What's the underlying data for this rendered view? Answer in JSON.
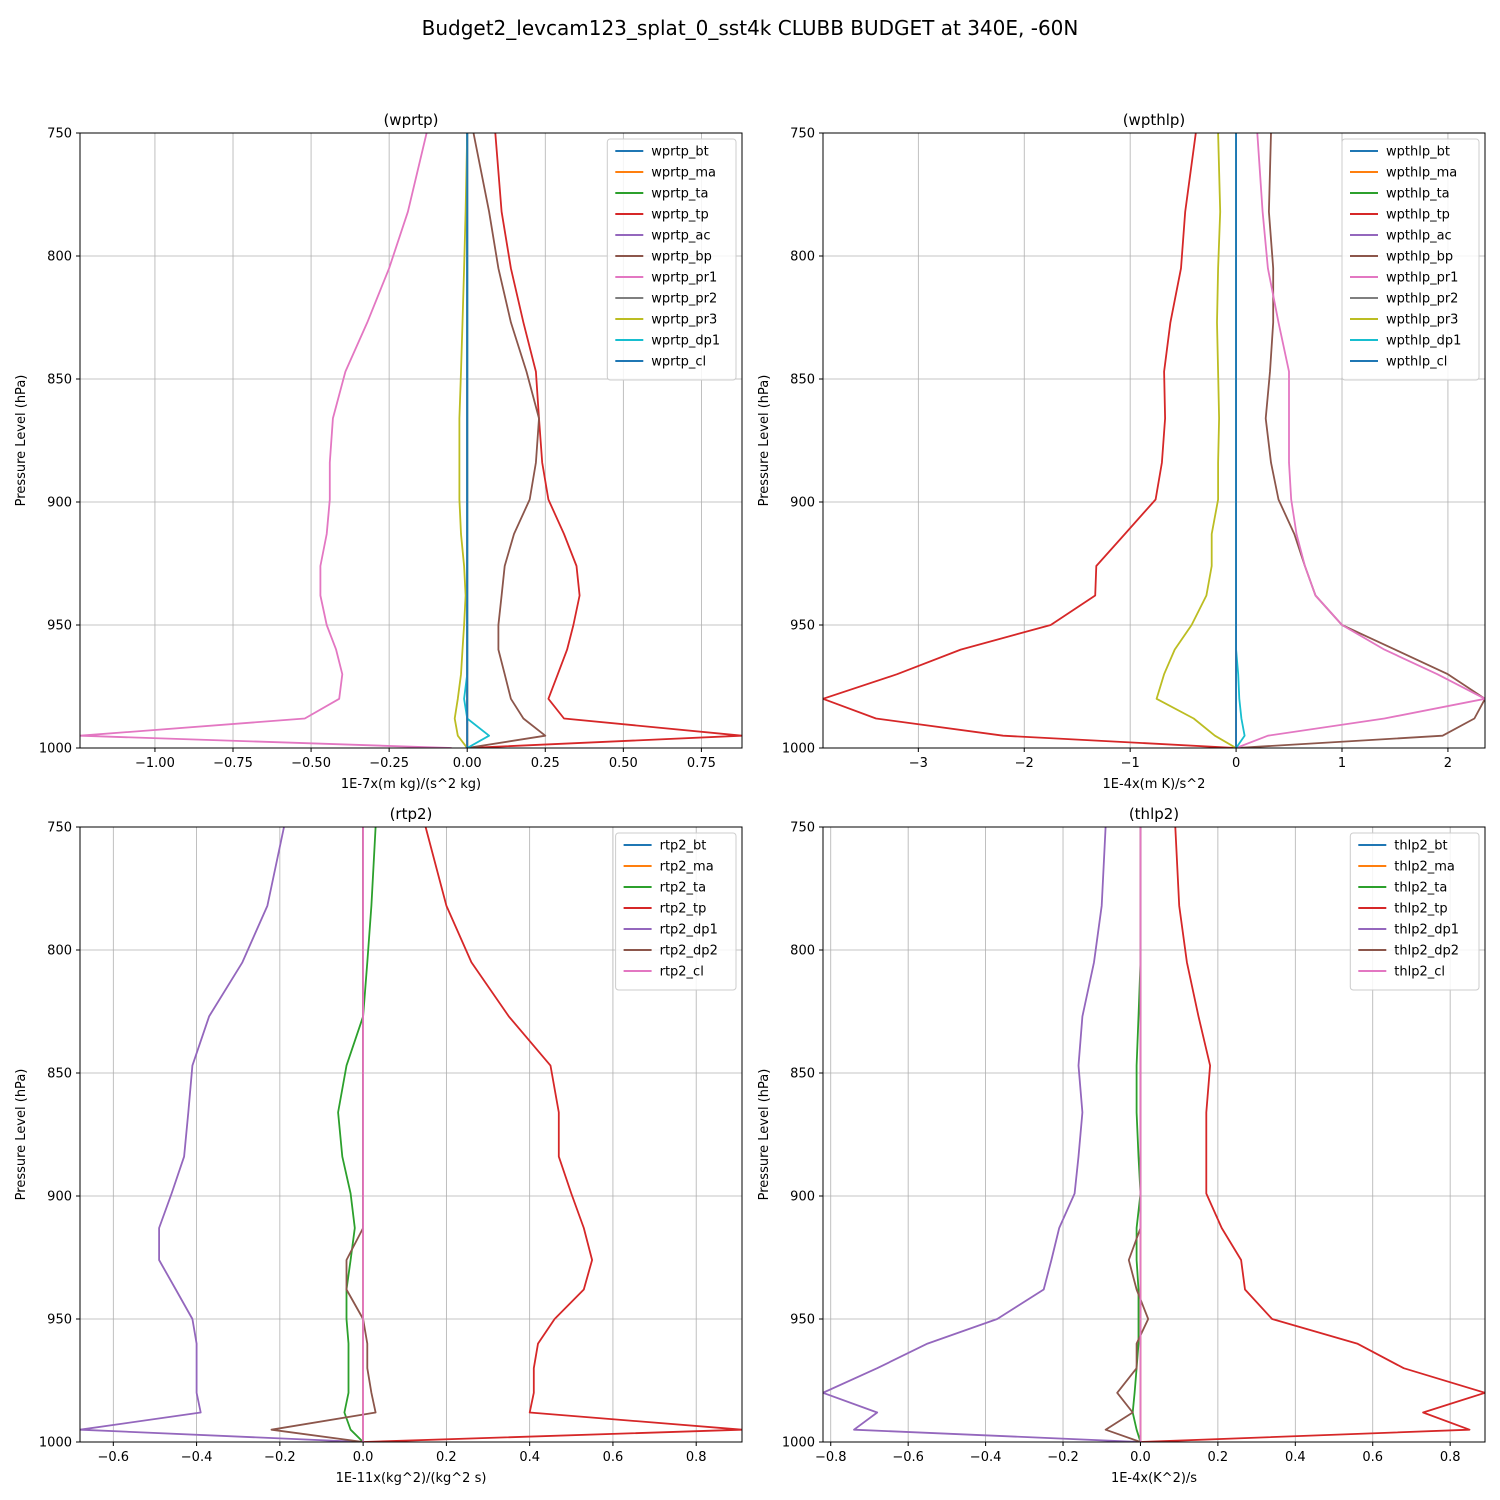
{
  "figure_title": "Budget2_levcam123_splat_0_sst4k CLUBB BUDGET at 340E, -60N",
  "colors": {
    "C0": "#1f77b4",
    "C1": "#ff7f0e",
    "C2": "#2ca02c",
    "C3": "#d62728",
    "C4": "#9467bd",
    "C5": "#8c564b",
    "C6": "#e377c2",
    "C7": "#7f7f7f",
    "C8": "#bcbd22",
    "C9": "#17becf"
  },
  "chart_data": [
    {
      "type": "line",
      "title": "(wprtp)",
      "xlabel": "1E-7x(m kg)/(s^2 kg)",
      "ylabel": "Pressure Level (hPa)",
      "xlim": [
        -1.24,
        0.88
      ],
      "ylim": [
        1000,
        750
      ],
      "yticks": [
        750,
        800,
        850,
        900,
        950,
        1000
      ],
      "xticks": [
        -1.0,
        -0.75,
        -0.5,
        -0.25,
        0.0,
        0.25,
        0.5,
        0.75
      ],
      "xtick_labels": [
        "−1.00",
        "−0.75",
        "−0.50",
        "−0.25",
        "0.00",
        "0.25",
        "0.50",
        "0.75"
      ],
      "grid": true,
      "legend": "top-right",
      "levels": [
        750,
        782,
        805,
        827,
        847,
        866,
        884,
        899,
        913,
        926,
        938,
        950,
        960,
        970,
        980,
        988,
        995,
        1000
      ],
      "series": [
        {
          "name": "wprtp_bt",
          "color": "C0",
          "values": [
            0,
            0,
            0,
            0,
            0,
            0,
            0,
            0,
            0,
            0,
            0,
            0,
            0,
            0,
            0,
            0,
            0,
            0
          ]
        },
        {
          "name": "wprtp_ma",
          "color": "C1",
          "values": [
            0,
            0,
            0,
            0,
            0,
            0,
            0,
            0,
            0,
            0,
            0,
            0,
            0,
            0,
            0,
            0,
            0,
            0
          ]
        },
        {
          "name": "wprtp_ta",
          "color": "C2",
          "values": [
            0,
            0,
            0,
            0,
            0,
            0,
            0,
            0,
            0,
            0,
            0,
            0,
            0,
            0,
            0,
            0,
            0,
            0
          ]
        },
        {
          "name": "wprtp_tp",
          "color": "C3",
          "values": [
            0.09,
            0.11,
            0.14,
            0.18,
            0.22,
            0.23,
            0.24,
            0.26,
            0.31,
            0.35,
            0.36,
            0.34,
            0.32,
            0.29,
            0.26,
            0.31,
            0.88,
            0.0
          ]
        },
        {
          "name": "wprtp_ac",
          "color": "C4",
          "values": [
            0,
            0,
            0,
            0,
            0,
            0,
            0,
            0,
            0,
            0,
            0,
            0,
            0,
            0,
            0,
            0,
            0,
            0
          ]
        },
        {
          "name": "wprtp_bp",
          "color": "C5",
          "values": [
            0.02,
            0.07,
            0.1,
            0.14,
            0.19,
            0.23,
            0.22,
            0.2,
            0.15,
            0.12,
            0.11,
            0.1,
            0.1,
            0.12,
            0.14,
            0.18,
            0.25,
            0.0
          ]
        },
        {
          "name": "wprtp_pr1",
          "color": "C6",
          "values": [
            -0.13,
            -0.19,
            -0.25,
            -0.32,
            -0.39,
            -0.43,
            -0.44,
            -0.44,
            -0.45,
            -0.47,
            -0.47,
            -0.45,
            -0.42,
            -0.4,
            -0.41,
            -0.52,
            -1.24,
            -0.05
          ]
        },
        {
          "name": "wprtp_pr2",
          "color": "C7",
          "values": [
            0,
            0,
            0,
            0,
            0,
            0,
            0,
            0,
            0,
            0,
            0,
            0,
            0,
            0,
            0,
            0,
            0,
            0
          ]
        },
        {
          "name": "wprtp_pr3",
          "color": "C8",
          "values": [
            0.0,
            -0.005,
            -0.01,
            -0.015,
            -0.02,
            -0.025,
            -0.025,
            -0.025,
            -0.02,
            -0.01,
            -0.005,
            -0.01,
            -0.015,
            -0.02,
            -0.03,
            -0.04,
            -0.03,
            0.0
          ]
        },
        {
          "name": "wprtp_dp1",
          "color": "C9",
          "values": [
            0,
            0,
            0,
            0,
            0,
            0,
            0,
            0,
            0,
            0,
            0,
            0,
            0,
            0,
            -0.01,
            0.0,
            0.07,
            0.0
          ]
        },
        {
          "name": "wprtp_cl",
          "color": "C0",
          "values": [
            0,
            0,
            0,
            0,
            0,
            0,
            0,
            0,
            0,
            0,
            0,
            0,
            0,
            0,
            0,
            0,
            0,
            0
          ]
        }
      ]
    },
    {
      "type": "line",
      "title": "(wpthlp)",
      "xlabel": "1E-4x(m K)/s^2",
      "ylabel": "Pressure Level (hPa)",
      "xlim": [
        -3.9,
        2.35
      ],
      "ylim": [
        1000,
        750
      ],
      "yticks": [
        750,
        800,
        850,
        900,
        950,
        1000
      ],
      "xticks": [
        -3,
        -2,
        -1,
        0,
        1,
        2
      ],
      "xtick_labels": [
        "−3",
        "−2",
        "−1",
        "0",
        "1",
        "2"
      ],
      "grid": true,
      "legend": "top-right",
      "levels": [
        750,
        782,
        805,
        827,
        847,
        866,
        884,
        899,
        913,
        926,
        938,
        950,
        960,
        970,
        980,
        988,
        995,
        1000
      ],
      "series": [
        {
          "name": "wpthlp_bt",
          "color": "C0",
          "values": [
            0,
            0,
            0,
            0,
            0,
            0,
            0,
            0,
            0,
            0,
            0,
            0,
            0,
            0,
            0,
            0,
            0,
            0
          ]
        },
        {
          "name": "wpthlp_ma",
          "color": "C1",
          "values": [
            0,
            0,
            0,
            0,
            0,
            0,
            0,
            0,
            0,
            0,
            0,
            0,
            0,
            0,
            0,
            0,
            0,
            0
          ]
        },
        {
          "name": "wpthlp_ta",
          "color": "C2",
          "values": [
            0,
            0,
            0,
            0,
            0,
            0,
            0,
            0,
            0,
            0,
            0,
            0,
            0,
            0,
            0,
            0,
            0,
            0
          ]
        },
        {
          "name": "wpthlp_tp",
          "color": "C3",
          "values": [
            -0.38,
            -0.48,
            -0.52,
            -0.62,
            -0.68,
            -0.67,
            -0.7,
            -0.76,
            -1.05,
            -1.32,
            -1.33,
            -1.75,
            -2.6,
            -3.2,
            -3.9,
            -3.4,
            -2.2,
            0.0
          ]
        },
        {
          "name": "wpthlp_ac",
          "color": "C4",
          "values": [
            0,
            0,
            0,
            0,
            0,
            0,
            0,
            0,
            0,
            0,
            0,
            0,
            0,
            0,
            0,
            0,
            0,
            0
          ]
        },
        {
          "name": "wpthlp_bp",
          "color": "C5",
          "values": [
            0.33,
            0.31,
            0.35,
            0.35,
            0.32,
            0.28,
            0.33,
            0.4,
            0.55,
            0.65,
            0.75,
            1.0,
            1.5,
            2.0,
            2.35,
            2.25,
            1.95,
            0.0
          ]
        },
        {
          "name": "wpthlp_pr1",
          "color": "C6",
          "values": [
            0.2,
            0.25,
            0.3,
            0.4,
            0.5,
            0.5,
            0.5,
            0.52,
            0.57,
            0.65,
            0.75,
            1.0,
            1.4,
            1.9,
            2.35,
            1.4,
            0.3,
            0.0
          ]
        },
        {
          "name": "wpthlp_pr2",
          "color": "C7",
          "values": [
            0,
            0,
            0,
            0,
            0,
            0,
            0,
            0,
            0,
            0,
            0,
            0,
            0,
            0,
            0,
            0,
            0,
            0
          ]
        },
        {
          "name": "wpthlp_pr3",
          "color": "C8",
          "values": [
            -0.17,
            -0.15,
            -0.17,
            -0.18,
            -0.17,
            -0.16,
            -0.17,
            -0.17,
            -0.23,
            -0.23,
            -0.28,
            -0.42,
            -0.58,
            -0.68,
            -0.75,
            -0.4,
            -0.2,
            0.0
          ]
        },
        {
          "name": "wpthlp_dp1",
          "color": "C9",
          "values": [
            0,
            0,
            0,
            0,
            0,
            0,
            0,
            0,
            0,
            0,
            0,
            0,
            0,
            0.02,
            0.03,
            0.05,
            0.08,
            0.0
          ]
        },
        {
          "name": "wpthlp_cl",
          "color": "C0",
          "values": [
            0,
            0,
            0,
            0,
            0,
            0,
            0,
            0,
            0,
            0,
            0,
            0,
            0,
            0,
            0,
            0,
            0,
            0
          ]
        }
      ]
    },
    {
      "type": "line",
      "title": "(rtp2)",
      "xlabel": "1E-11x(kg^2)/(kg^2 s)",
      "ylabel": "Pressure Level (hPa)",
      "xlim": [
        -0.68,
        0.91
      ],
      "ylim": [
        1000,
        750
      ],
      "yticks": [
        750,
        800,
        850,
        900,
        950,
        1000
      ],
      "xticks": [
        -0.6,
        -0.4,
        -0.2,
        0.0,
        0.2,
        0.4,
        0.6,
        0.8
      ],
      "xtick_labels": [
        "−0.6",
        "−0.4",
        "−0.2",
        "0.0",
        "0.2",
        "0.4",
        "0.6",
        "0.8"
      ],
      "grid": true,
      "legend": "top-right",
      "levels": [
        750,
        782,
        805,
        827,
        847,
        866,
        884,
        899,
        913,
        926,
        938,
        950,
        960,
        970,
        980,
        988,
        995,
        1000
      ],
      "series": [
        {
          "name": "rtp2_bt",
          "color": "C0",
          "values": [
            0,
            0,
            0,
            0,
            0,
            0,
            0,
            0,
            0,
            0,
            0,
            0,
            0,
            0,
            0,
            0,
            0,
            0
          ]
        },
        {
          "name": "rtp2_ma",
          "color": "C1",
          "values": [
            0,
            0,
            0,
            0,
            0,
            0,
            0,
            0,
            0,
            0,
            0,
            0,
            0,
            0,
            0,
            0,
            0,
            0
          ]
        },
        {
          "name": "rtp2_ta",
          "color": "C2",
          "values": [
            0.03,
            0.02,
            0.01,
            0.0,
            -0.04,
            -0.06,
            -0.05,
            -0.03,
            -0.02,
            -0.03,
            -0.04,
            -0.04,
            -0.035,
            -0.035,
            -0.035,
            -0.045,
            -0.03,
            0.0
          ]
        },
        {
          "name": "rtp2_tp",
          "color": "C3",
          "values": [
            0.15,
            0.2,
            0.26,
            0.35,
            0.45,
            0.47,
            0.47,
            0.5,
            0.53,
            0.55,
            0.53,
            0.46,
            0.42,
            0.41,
            0.41,
            0.4,
            0.91,
            0.0
          ]
        },
        {
          "name": "rtp2_dp1",
          "color": "C4",
          "values": [
            -0.19,
            -0.23,
            -0.29,
            -0.37,
            -0.41,
            -0.42,
            -0.43,
            -0.46,
            -0.49,
            -0.49,
            -0.45,
            -0.41,
            -0.4,
            -0.4,
            -0.4,
            -0.39,
            -0.68,
            0.0
          ]
        },
        {
          "name": "rtp2_dp2",
          "color": "C5",
          "values": [
            0,
            0,
            0,
            0,
            0,
            0,
            0,
            0,
            0,
            -0.04,
            -0.04,
            0.0,
            0.01,
            0.01,
            0.02,
            0.03,
            -0.22,
            0.0
          ]
        },
        {
          "name": "rtp2_cl",
          "color": "C6",
          "values": [
            0,
            0,
            0,
            0,
            0,
            0,
            0,
            0,
            0,
            0,
            0,
            0,
            0,
            0,
            0,
            0,
            0,
            0
          ]
        }
      ]
    },
    {
      "type": "line",
      "title": "(thlp2)",
      "xlabel": "1E-4x(K^2)/s",
      "ylabel": "Pressure Level (hPa)",
      "xlim": [
        -0.82,
        0.89
      ],
      "ylim": [
        1000,
        750
      ],
      "yticks": [
        750,
        800,
        850,
        900,
        950,
        1000
      ],
      "xticks": [
        -0.8,
        -0.6,
        -0.4,
        -0.2,
        0.0,
        0.2,
        0.4,
        0.6,
        0.8
      ],
      "xtick_labels": [
        "−0.8",
        "−0.6",
        "−0.4",
        "−0.2",
        "0.0",
        "0.2",
        "0.4",
        "0.6",
        "0.8"
      ],
      "grid": true,
      "legend": "top-right",
      "levels": [
        750,
        782,
        805,
        827,
        847,
        866,
        884,
        899,
        913,
        926,
        938,
        950,
        960,
        970,
        980,
        988,
        995,
        1000
      ],
      "series": [
        {
          "name": "thlp2_bt",
          "color": "C0",
          "values": [
            0,
            0,
            0,
            0,
            0,
            0,
            0,
            0,
            0,
            0,
            0,
            0,
            0,
            0,
            0,
            0,
            0,
            0
          ]
        },
        {
          "name": "thlp2_ma",
          "color": "C1",
          "values": [
            0,
            0,
            0,
            0,
            0,
            0,
            0,
            0,
            0,
            0,
            0,
            0,
            0,
            0,
            0,
            0,
            0,
            0
          ]
        },
        {
          "name": "thlp2_ta",
          "color": "C2",
          "values": [
            0.0,
            0.0,
            0.0,
            -0.005,
            -0.01,
            -0.01,
            -0.005,
            0.0,
            -0.01,
            -0.01,
            -0.005,
            -0.005,
            -0.005,
            -0.01,
            -0.015,
            -0.02,
            -0.01,
            0.0
          ]
        },
        {
          "name": "thlp2_tp",
          "color": "C3",
          "values": [
            0.09,
            0.1,
            0.12,
            0.15,
            0.18,
            0.17,
            0.17,
            0.17,
            0.21,
            0.26,
            0.27,
            0.34,
            0.56,
            0.68,
            0.89,
            0.73,
            0.85,
            0.0
          ]
        },
        {
          "name": "thlp2_dp1",
          "color": "C4",
          "values": [
            -0.09,
            -0.1,
            -0.12,
            -0.15,
            -0.16,
            -0.15,
            -0.16,
            -0.17,
            -0.21,
            -0.23,
            -0.25,
            -0.37,
            -0.55,
            -0.68,
            -0.82,
            -0.68,
            -0.74,
            0.0
          ]
        },
        {
          "name": "thlp2_dp2",
          "color": "C5",
          "values": [
            0,
            0,
            0,
            0,
            0,
            0,
            0,
            0,
            0,
            -0.03,
            -0.01,
            0.02,
            -0.01,
            -0.01,
            -0.06,
            -0.02,
            -0.09,
            0.0
          ]
        },
        {
          "name": "thlp2_cl",
          "color": "C6",
          "values": [
            0,
            0,
            0,
            0,
            0,
            0,
            0,
            0,
            0,
            0,
            0,
            0,
            0,
            0,
            0,
            0,
            0,
            0
          ]
        }
      ]
    }
  ]
}
